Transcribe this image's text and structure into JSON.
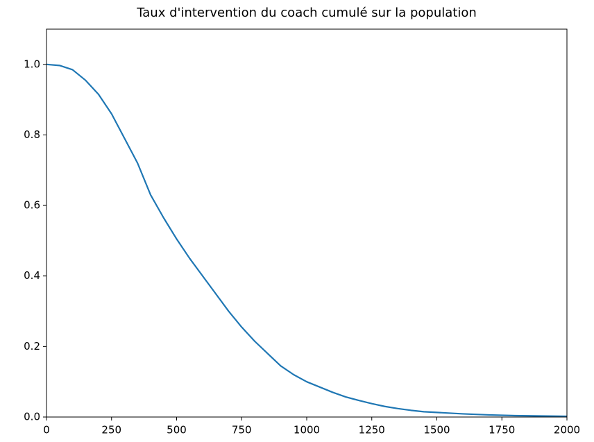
{
  "chart_data": {
    "type": "line",
    "title": "Taux d'intervention du coach cumulé sur la population",
    "x": [
      0,
      50,
      100,
      150,
      200,
      250,
      300,
      350,
      400,
      450,
      500,
      550,
      600,
      650,
      700,
      750,
      800,
      850,
      900,
      950,
      1000,
      1050,
      1100,
      1150,
      1200,
      1250,
      1300,
      1350,
      1400,
      1450,
      1500,
      1600,
      1700,
      1800,
      1900,
      2000
    ],
    "series": [
      {
        "color": "#1f77b4",
        "values": [
          1.0,
          0.997,
          0.985,
          0.955,
          0.915,
          0.86,
          0.79,
          0.72,
          0.63,
          0.565,
          0.505,
          0.45,
          0.4,
          0.35,
          0.3,
          0.255,
          0.215,
          0.18,
          0.145,
          0.12,
          0.1,
          0.085,
          0.07,
          0.057,
          0.047,
          0.038,
          0.03,
          0.024,
          0.019,
          0.015,
          0.013,
          0.009,
          0.006,
          0.004,
          0.003,
          0.002
        ]
      }
    ],
    "xlim": [
      0,
      2000
    ],
    "xticks": [
      0,
      250,
      500,
      750,
      1000,
      1250,
      1500,
      1750,
      2000
    ],
    "ylim": [
      0,
      1.1
    ],
    "yticks": [
      {
        "value": 0,
        "label": "0.0"
      },
      0.2,
      0.4,
      0.6,
      0.8,
      {
        "value": 1,
        "label": "1.0"
      }
    ],
    "grid": false
  }
}
